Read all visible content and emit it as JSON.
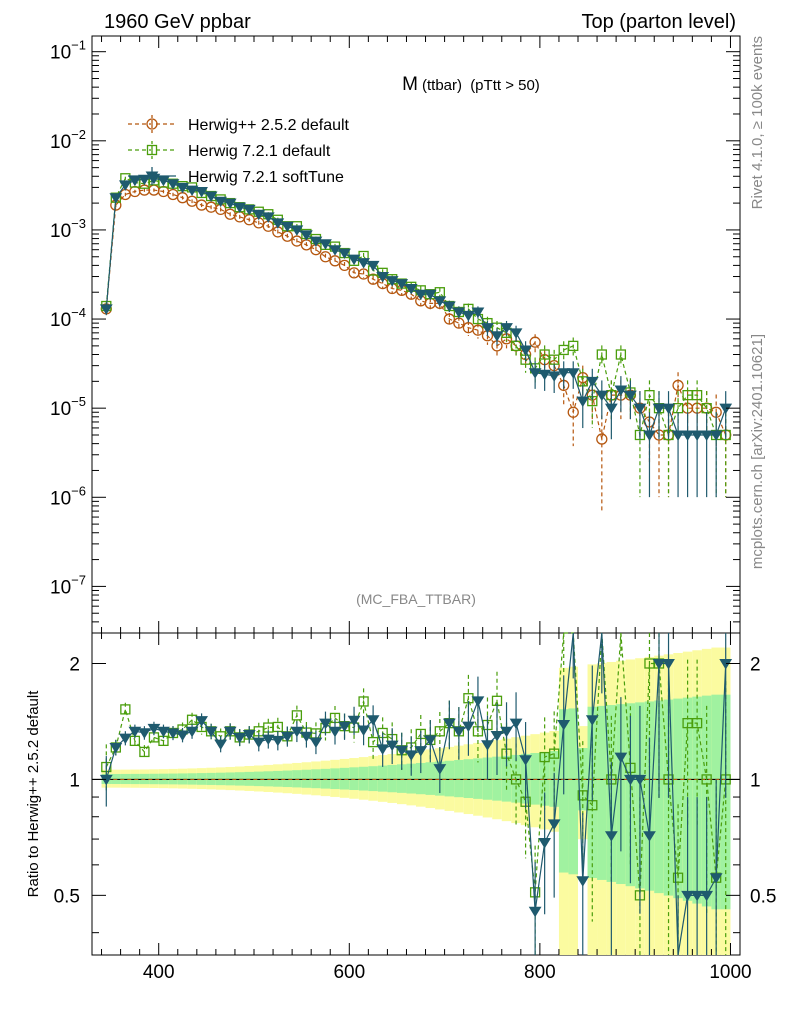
{
  "header": {
    "left": "1960 GeV ppbar",
    "right": "Top (parton level)"
  },
  "side": {
    "rivet": "Rivet 4.1.0, ≥ 100k events",
    "mcplots": "mcplots.cern.ch [arXiv:2401.10621]"
  },
  "plot_title": {
    "main": "M",
    "sub": "(ttbar)",
    "cut": "(pTtt > 50)"
  },
  "analysis_tag": "(MC_FBA_TTBAR)",
  "ratio_ylabel": "Ratio to Herwig++ 2.5.2 default",
  "legend": [
    {
      "name": "Herwig++ 2.5.2 default",
      "color": "#b5570f",
      "marker": "circle",
      "dash": true
    },
    {
      "name": "Herwig 7.2.1 default",
      "color": "#4a9e0c",
      "marker": "square",
      "dash": true
    },
    {
      "name": "Herwig 7.2.1 softTune",
      "color": "#1f5a6e",
      "marker": "triangle",
      "dash": false
    }
  ],
  "axes": {
    "x_ticks": [
      "400",
      "600",
      "800",
      "1000"
    ],
    "y_ticks_main": [
      {
        "base": "10",
        "exp": "−1"
      },
      {
        "base": "10",
        "exp": "−2"
      },
      {
        "base": "10",
        "exp": "−3"
      },
      {
        "base": "10",
        "exp": "−4"
      },
      {
        "base": "10",
        "exp": "−5"
      },
      {
        "base": "10",
        "exp": "−6"
      },
      {
        "base": "10",
        "exp": "−7"
      }
    ],
    "y_ticks_ratio": [
      "2",
      "1",
      "0.5"
    ]
  },
  "chart_data": {
    "type": "scatter",
    "title": "M (ttbar) (pTtt > 50)",
    "xlabel": "",
    "ylabel": "",
    "xlim": [
      330,
      1010
    ],
    "ylim": [
      3e-08,
      0.15
    ],
    "ylog": true,
    "ratio_ylim": [
      0.35,
      2.4
    ],
    "x": [
      345,
      355,
      365,
      375,
      385,
      395,
      405,
      415,
      425,
      435,
      445,
      455,
      465,
      475,
      485,
      495,
      505,
      515,
      525,
      535,
      545,
      555,
      565,
      575,
      585,
      595,
      605,
      615,
      625,
      635,
      645,
      655,
      665,
      675,
      685,
      695,
      705,
      715,
      725,
      735,
      745,
      755,
      765,
      775,
      785,
      795,
      805,
      815,
      825,
      835,
      845,
      855,
      865,
      875,
      885,
      895,
      905,
      915,
      925,
      935,
      945,
      955,
      965,
      975,
      985,
      995
    ],
    "series": [
      {
        "name": "Herwig++ 2.5.2 default",
        "values": [
          0.00013,
          0.0019,
          0.0025,
          0.0027,
          0.0028,
          0.0028,
          0.0027,
          0.0025,
          0.0023,
          0.0021,
          0.0019,
          0.0018,
          0.0017,
          0.0015,
          0.0014,
          0.0013,
          0.0012,
          0.0011,
          0.00095,
          0.00085,
          0.00075,
          0.00068,
          0.0006,
          0.0005,
          0.00045,
          0.0004,
          0.00033,
          0.00032,
          0.00028,
          0.00025,
          0.00022,
          0.00021,
          0.00019,
          0.00016,
          0.00015,
          0.00015,
          0.0001,
          9e-05,
          8e-05,
          7.5e-05,
          6.5e-05,
          5e-05,
          6e-05,
          5e-05,
          4e-05,
          5.5e-05,
          3.5e-05,
          3e-05,
          1.8e-05,
          9e-06,
          2.2e-05,
          1.4e-05,
          4.5e-06,
          1.4e-05,
          1.4e-05,
          1.4e-05,
          1e-05,
          7e-06,
          5e-06,
          5e-06,
          1.8e-05,
          1e-05,
          1e-05,
          1e-05,
          9e-06,
          5e-06
        ]
      },
      {
        "name": "Herwig 7.2.1 default",
        "values": [
          0.00014,
          0.0023,
          0.0038,
          0.0034,
          0.0033,
          0.0036,
          0.0034,
          0.0033,
          0.0031,
          0.003,
          0.0026,
          0.0024,
          0.0022,
          0.002,
          0.0018,
          0.0017,
          0.0016,
          0.0015,
          0.0013,
          0.0011,
          0.0011,
          0.0009,
          0.00079,
          0.00068,
          0.00065,
          0.00055,
          0.00045,
          0.00051,
          0.00035,
          0.00033,
          0.00028,
          0.00025,
          0.00023,
          0.00021,
          0.00019,
          0.0002,
          0.00014,
          0.00012,
          0.00013,
          0.0001,
          9e-05,
          8e-05,
          7e-05,
          5e-05,
          3.5e-05,
          2.8e-05,
          4e-05,
          3.5e-05,
          4.5e-05,
          5e-05,
          2e-05,
          1.2e-05,
          4e-05,
          1.4e-05,
          4e-05,
          1.5e-05,
          5e-06,
          1.4e-05,
          1e-05,
          5e-06,
          1e-05,
          1.4e-05,
          1.4e-05,
          1e-05,
          5e-06,
          5e-06
        ]
      },
      {
        "name": "Herwig 7.2.1 softTune",
        "values": [
          0.00013,
          0.0023,
          0.0032,
          0.0036,
          0.0037,
          0.0038,
          0.0036,
          0.0033,
          0.003,
          0.0028,
          0.0027,
          0.0024,
          0.0021,
          0.002,
          0.0018,
          0.0017,
          0.0015,
          0.0014,
          0.0012,
          0.0011,
          0.001,
          0.00088,
          0.00075,
          0.0007,
          0.0006,
          0.00055,
          0.00047,
          0.00043,
          0.0004,
          0.0003,
          0.00027,
          0.00025,
          0.00022,
          0.00019,
          0.00019,
          0.00016,
          0.00014,
          0.00012,
          0.00011,
          0.00012,
          8e-05,
          6.5e-05,
          8e-05,
          7e-05,
          4.5e-05,
          2.5e-05,
          2.4e-05,
          2.3e-05,
          2.5e-05,
          2.5e-05,
          1.2e-05,
          2e-05,
          1.4e-05,
          1e-05,
          1.6e-05,
          1.4e-05,
          1e-05,
          5e-06,
          1e-05,
          1e-05,
          5e-06,
          5e-06,
          5e-06,
          5e-06,
          5e-06,
          1e-05
        ]
      }
    ]
  }
}
